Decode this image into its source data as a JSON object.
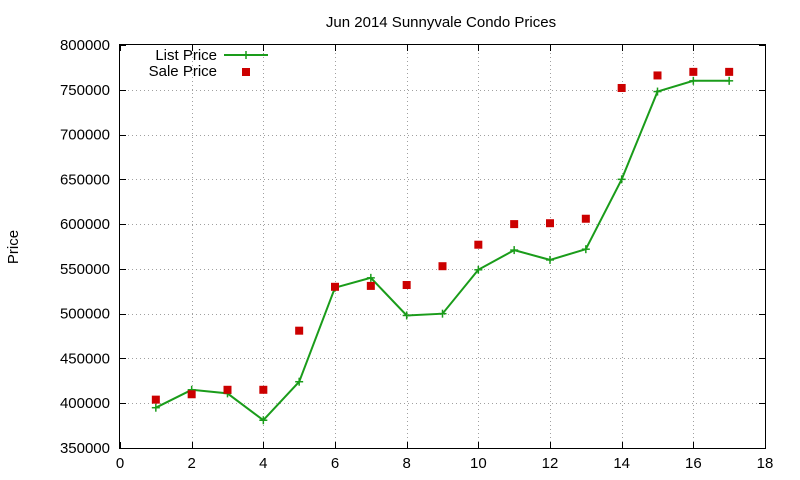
{
  "chart_data": {
    "type": "line",
    "title": "Jun 2014 Sunnyvale Condo Prices",
    "xlabel": "",
    "ylabel": "Price",
    "xlim": [
      0,
      18
    ],
    "ylim": [
      350000,
      800000
    ],
    "xticks": [
      0,
      2,
      4,
      6,
      8,
      10,
      12,
      14,
      16,
      18
    ],
    "yticks": [
      350000,
      400000,
      450000,
      500000,
      550000,
      600000,
      650000,
      700000,
      750000,
      800000
    ],
    "grid": true,
    "legend_position": "top-left",
    "series": [
      {
        "name": "List Price",
        "style": "line+plus",
        "color": "#1a9c1a",
        "x": [
          1,
          2,
          3,
          4,
          5,
          6,
          7,
          8,
          9,
          10,
          11,
          12,
          13,
          14,
          15,
          16,
          17
        ],
        "values": [
          395000,
          415000,
          411000,
          381000,
          424000,
          529000,
          540000,
          498000,
          500000,
          549000,
          571000,
          560000,
          572000,
          650000,
          748000,
          760000,
          760000
        ]
      },
      {
        "name": "Sale Price",
        "style": "square",
        "color": "#cc0000",
        "x": [
          1,
          2,
          3,
          4,
          5,
          6,
          7,
          8,
          9,
          10,
          11,
          12,
          13,
          14,
          15,
          16,
          17
        ],
        "values": [
          404000,
          410000,
          415000,
          415000,
          481000,
          530000,
          531000,
          532000,
          553000,
          577000,
          600000,
          601000,
          606000,
          752000,
          766000,
          770000,
          770000
        ]
      }
    ]
  }
}
